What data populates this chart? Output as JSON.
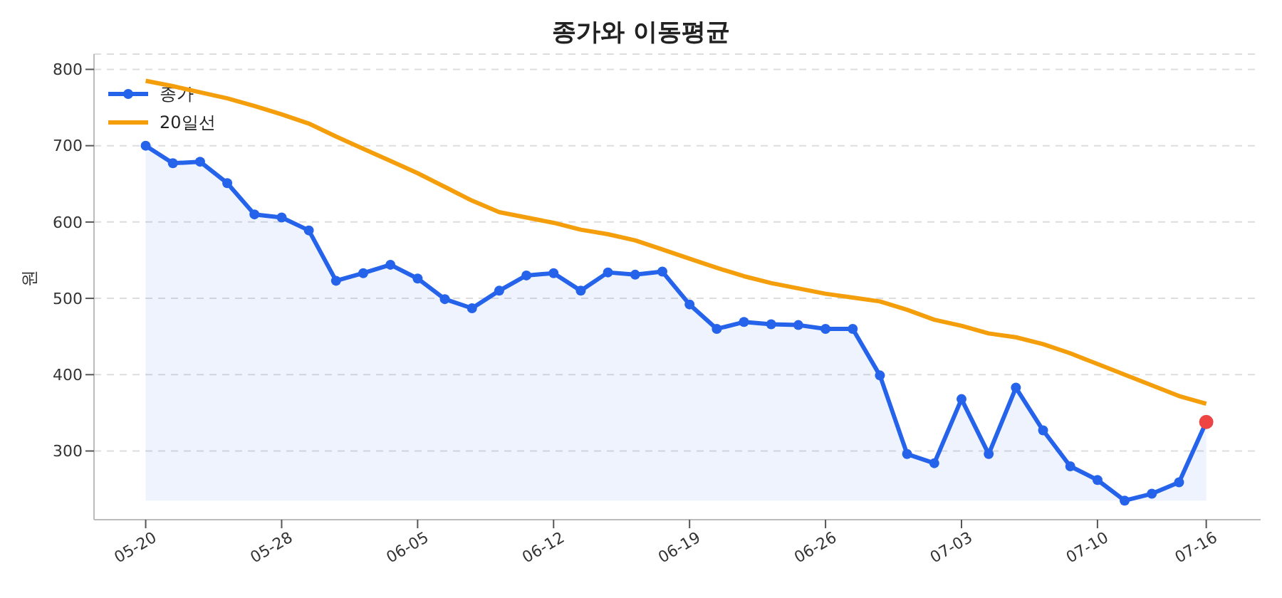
{
  "chart_data": {
    "type": "line",
    "title": "종가와 이동평균",
    "ylabel": "원",
    "categories": [
      "05-20",
      null,
      null,
      null,
      null,
      "05-28",
      null,
      null,
      null,
      null,
      "06-05",
      null,
      null,
      null,
      null,
      "06-12",
      null,
      null,
      null,
      null,
      "06-19",
      null,
      null,
      null,
      null,
      "06-26",
      null,
      null,
      null,
      null,
      "07-03",
      null,
      null,
      null,
      null,
      "07-10",
      null,
      null,
      null,
      "07-16"
    ],
    "series": [
      {
        "name": "종가",
        "type": "area",
        "color": "#2563eb",
        "marker": "circle",
        "colors": [
          "#2563eb",
          "#2563eb",
          "#2563eb",
          "#2563eb",
          "#2563eb",
          "#2563eb",
          "#2563eb",
          "#2563eb",
          "#2563eb",
          "#2563eb",
          "#2563eb",
          "#2563eb",
          "#2563eb",
          "#2563eb",
          "#2563eb",
          "#2563eb",
          "#2563eb",
          "#2563eb",
          "#2563eb",
          "#2563eb",
          "#2563eb",
          "#2563eb",
          "#2563eb",
          "#2563eb",
          "#2563eb",
          "#2563eb",
          "#2563eb",
          "#2563eb",
          "#2563eb",
          "#2563eb",
          "#2563eb",
          "#2563eb",
          "#2563eb",
          "#2563eb",
          "#2563eb",
          "#2563eb",
          "#2563eb",
          "#2563eb",
          "#2563eb",
          "#ef4444"
        ],
        "values": [
          700,
          677,
          679,
          651,
          610,
          606,
          589,
          523,
          533,
          544,
          526,
          499,
          487,
          510,
          530,
          533,
          510,
          534,
          531,
          535,
          492,
          460,
          469,
          466,
          465,
          460,
          460,
          399,
          296,
          284,
          368,
          296,
          383,
          327,
          280,
          262,
          235,
          244,
          259,
          338
        ]
      },
      {
        "name": "20일선",
        "color": "#f59e0b",
        "marker": "none",
        "values": [
          785,
          778,
          770,
          762,
          752,
          741,
          729,
          712,
          696,
          680,
          664,
          646,
          628,
          613,
          606,
          599,
          590,
          584,
          576,
          564,
          552,
          540,
          529,
          520,
          513,
          506,
          501,
          496,
          485,
          472,
          464,
          454,
          449,
          440,
          428,
          414,
          400,
          386,
          372,
          362
        ]
      }
    ],
    "ylim": [
      210,
      820
    ],
    "yticks": [
      300,
      400,
      500,
      600,
      700,
      800
    ],
    "grid": "y",
    "legend": "top left"
  }
}
